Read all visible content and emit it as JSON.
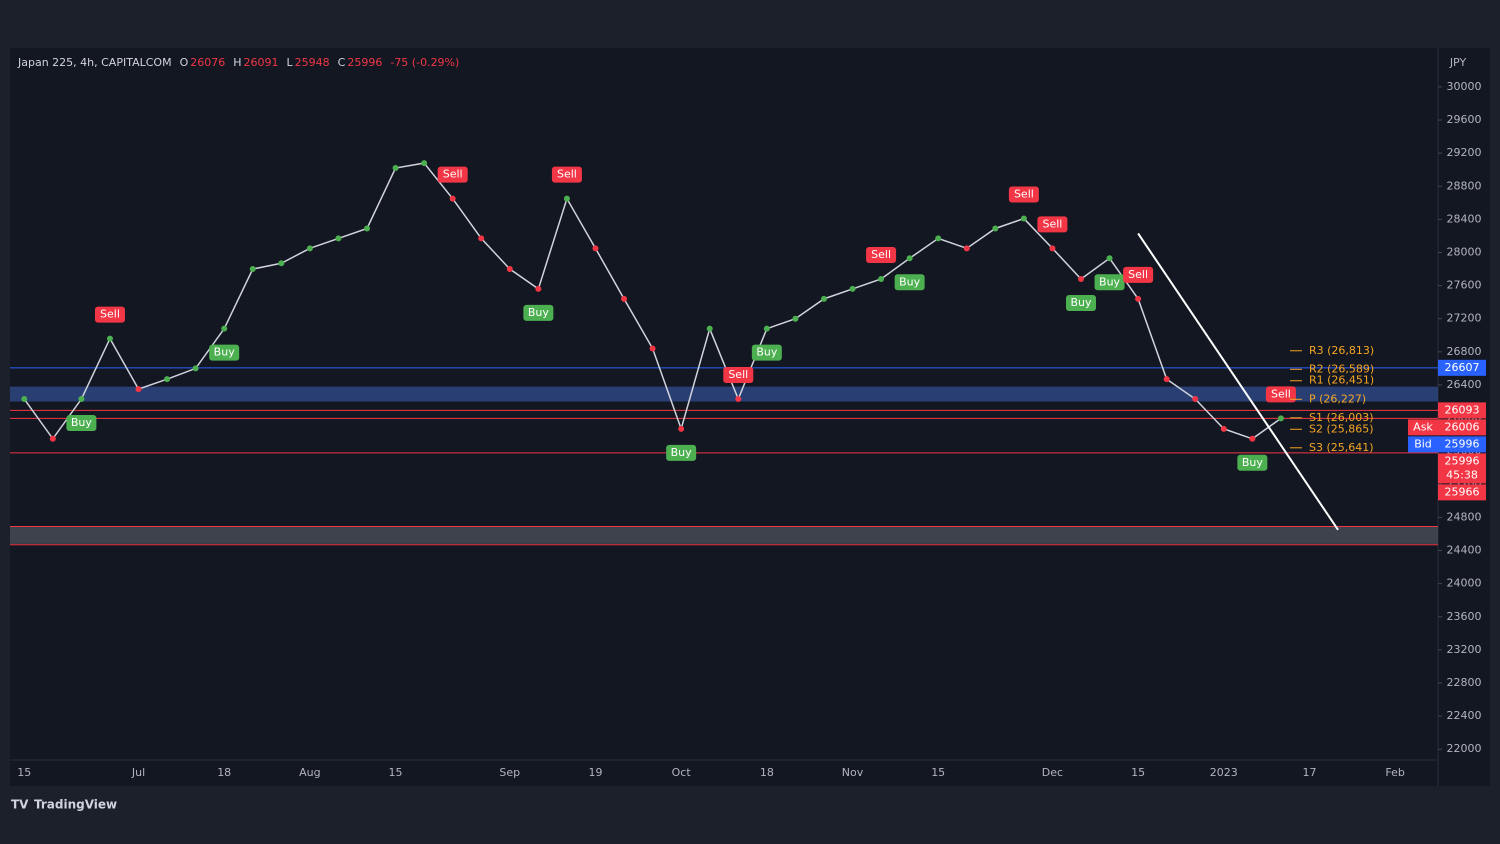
{
  "header": {
    "symbol": "Japan 225, 4h, CAPITALCOM",
    "ohlc": [
      {
        "label": "O",
        "value": 26076
      },
      {
        "label": "H",
        "value": 26091
      },
      {
        "label": "L",
        "value": 25948
      },
      {
        "label": "C",
        "value": 25996
      }
    ],
    "change": {
      "value": -75,
      "label": "-75 (-0.29%)"
    }
  },
  "footer": {
    "brand": "TradingView"
  },
  "chart_data": {
    "type": "line",
    "y_unit": "JPY",
    "categories": [
      "15",
      null,
      null,
      null,
      "Jul",
      null,
      null,
      "18",
      null,
      null,
      "Aug",
      null,
      null,
      "15",
      null,
      null,
      null,
      "Sep",
      null,
      null,
      "19",
      null,
      null,
      "Oct",
      null,
      null,
      "18",
      null,
      null,
      "Nov",
      null,
      null,
      "15",
      null,
      null,
      null,
      "Dec",
      null,
      null,
      "15",
      null,
      null,
      "2023",
      null,
      null,
      "17",
      null,
      null,
      "Feb",
      null
    ],
    "values": [
      26230,
      25750,
      26230,
      26960,
      26350,
      26470,
      26600,
      27080,
      27800,
      27870,
      28050,
      28170,
      28290,
      29020,
      29080,
      28650,
      28170,
      27800,
      27560,
      28650,
      28050,
      27440,
      26840,
      25870,
      27080,
      26230,
      27080,
      27200,
      27440,
      27560,
      27680,
      27930,
      28170,
      28050,
      28290,
      28410,
      28050,
      27680,
      27930,
      27440,
      26470,
      26230,
      25870,
      25750,
      25996,
      null,
      null,
      null,
      null,
      null
    ],
    "color": "#d1d4dc",
    "up_color": "#4caf50",
    "down_color": "#f23645",
    "ylim": [
      21870,
      30470
    ],
    "yticks": [
      22000,
      22400,
      22800,
      23200,
      23600,
      24000,
      24400,
      24800,
      25200,
      25600,
      26000,
      26400,
      26800,
      27200,
      27600,
      28000,
      28400,
      28800,
      29200,
      29600,
      30000
    ],
    "grid": false,
    "signals": [
      {
        "label": "Buy",
        "index": 2
      },
      {
        "label": "Sell",
        "index": 3
      },
      {
        "label": "Buy",
        "index": 7
      },
      {
        "label": "Sell",
        "index": 15
      },
      {
        "label": "Buy",
        "index": 18
      },
      {
        "label": "Sell",
        "index": 19
      },
      {
        "label": "Buy",
        "index": 23
      },
      {
        "label": "Sell",
        "index": 25
      },
      {
        "label": "Buy",
        "index": 26
      },
      {
        "label": "Sell",
        "index": 30
      },
      {
        "label": "Buy",
        "index": 31
      },
      {
        "label": "Sell",
        "index": 35
      },
      {
        "label": "Sell",
        "index": 36
      },
      {
        "label": "Buy",
        "index": 37
      },
      {
        "label": "Buy",
        "index": 38
      },
      {
        "label": "Sell",
        "index": 39
      },
      {
        "label": "Buy",
        "index": 43
      },
      {
        "label": "Sell",
        "index": 44
      }
    ],
    "signal_colors": {
      "Buy": "#4caf50",
      "Sell": "#f23645"
    },
    "pivots": [
      {
        "value": 26813,
        "label": "R3 (26,813)"
      },
      {
        "value": 26589,
        "label": "R2 (26,589)"
      },
      {
        "value": 26451,
        "label": "R1 (26,451)"
      },
      {
        "value": 26227,
        "label": "P (26,227)"
      },
      {
        "value": 26003,
        "label": "S1 (26,003)"
      },
      {
        "value": 25865,
        "label": "S2 (25,865)"
      },
      {
        "value": 25641,
        "label": "S3 (25,641)"
      }
    ],
    "pivot_color": "#f5a623",
    "zones": [
      {
        "from": 26200,
        "to": 26380,
        "color": "#2f4a8a"
      },
      {
        "from": 24480,
        "to": 24690,
        "color": "#4a4d57"
      }
    ],
    "levels": [
      {
        "value": 26607,
        "color": "#2962ff"
      },
      {
        "value": 26093,
        "color": "#f23645"
      },
      {
        "value": 25996,
        "color": "#f23645"
      },
      {
        "value": 25580,
        "color": "#f23645"
      },
      {
        "value": 24690,
        "color": "#f23645"
      },
      {
        "value": 24470,
        "color": "#f23645"
      }
    ],
    "trendline": {
      "from": {
        "index": 39,
        "value": 28230
      },
      "to": {
        "index": 46,
        "value": 24650
      },
      "color": "#ffffff"
    },
    "price_tags": [
      {
        "value": 26607,
        "color": "#2962ff"
      },
      {
        "value": 26093,
        "color": "#f23645"
      },
      {
        "value": 26006,
        "color": "#f23645",
        "tag": "Ask"
      },
      {
        "value": 25996,
        "color": "#2962ff",
        "tag": "Bid"
      },
      {
        "value": 25996,
        "color": "#f23645",
        "note": "45:38"
      },
      {
        "value": 25966,
        "color": "#f23645"
      }
    ]
  }
}
